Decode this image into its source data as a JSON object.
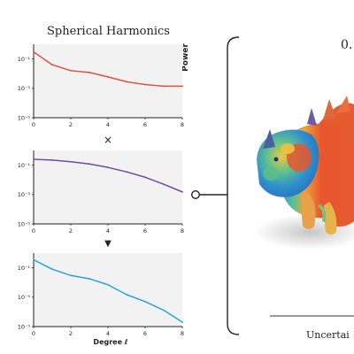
{
  "header": {
    "title": "Spherical Harmonics",
    "y_axis_label": "Power"
  },
  "operators": {
    "multiply": "×",
    "down_arrow": "▼"
  },
  "footer": {
    "x_axis_label": "Degree ℓ"
  },
  "right_panel": {
    "top_label": "0.",
    "bottom_label": "Uncertai"
  },
  "chart_data": [
    {
      "type": "line",
      "x": [
        0,
        1,
        2,
        3,
        4,
        5,
        6,
        7,
        8
      ],
      "series": [
        {
          "values": [
            0.3,
            0.04,
            0.016,
            0.012,
            0.006,
            0.0028,
            0.0018,
            0.0014,
            0.0014
          ],
          "color": "#e0503a"
        }
      ],
      "yscale": "log",
      "ylim": [
        1e-05,
        1
      ],
      "xlim": [
        0,
        8
      ],
      "xticks": [
        "0",
        "2",
        "4",
        "6",
        "8"
      ],
      "yticks": [
        "10⁻¹",
        "10⁻³",
        "10⁻⁵"
      ],
      "grid": false
    },
    {
      "type": "line",
      "x": [
        0,
        1,
        2,
        3,
        4,
        5,
        6,
        7,
        8
      ],
      "series": [
        {
          "values": [
            0.25,
            0.22,
            0.17,
            0.12,
            0.07,
            0.035,
            0.015,
            0.005,
            0.0015
          ],
          "color": "#6a4fa5"
        }
      ],
      "yscale": "log",
      "ylim": [
        1e-05,
        1
      ],
      "xlim": [
        0,
        8
      ],
      "xticks": [
        "0",
        "2",
        "4",
        "6",
        "8"
      ],
      "yticks": [
        "10⁻¹",
        "10⁻³",
        "10⁻⁵"
      ],
      "grid": false
    },
    {
      "type": "line",
      "x": [
        0,
        1,
        2,
        3,
        4,
        5,
        6,
        7,
        8
      ],
      "series": [
        {
          "values": [
            0.35,
            0.08,
            0.03,
            0.018,
            0.007,
            0.0015,
            0.0005,
            0.00013,
            2e-05
          ],
          "color": "#2aa2dc"
        }
      ],
      "yscale": "log",
      "ylim": [
        1e-05,
        1
      ],
      "xlim": [
        0,
        8
      ],
      "xticks": [
        "0",
        "2",
        "4",
        "6",
        "8"
      ],
      "yticks": [
        "10⁻¹",
        "10⁻³",
        "10⁻⁵"
      ],
      "grid": false
    }
  ]
}
